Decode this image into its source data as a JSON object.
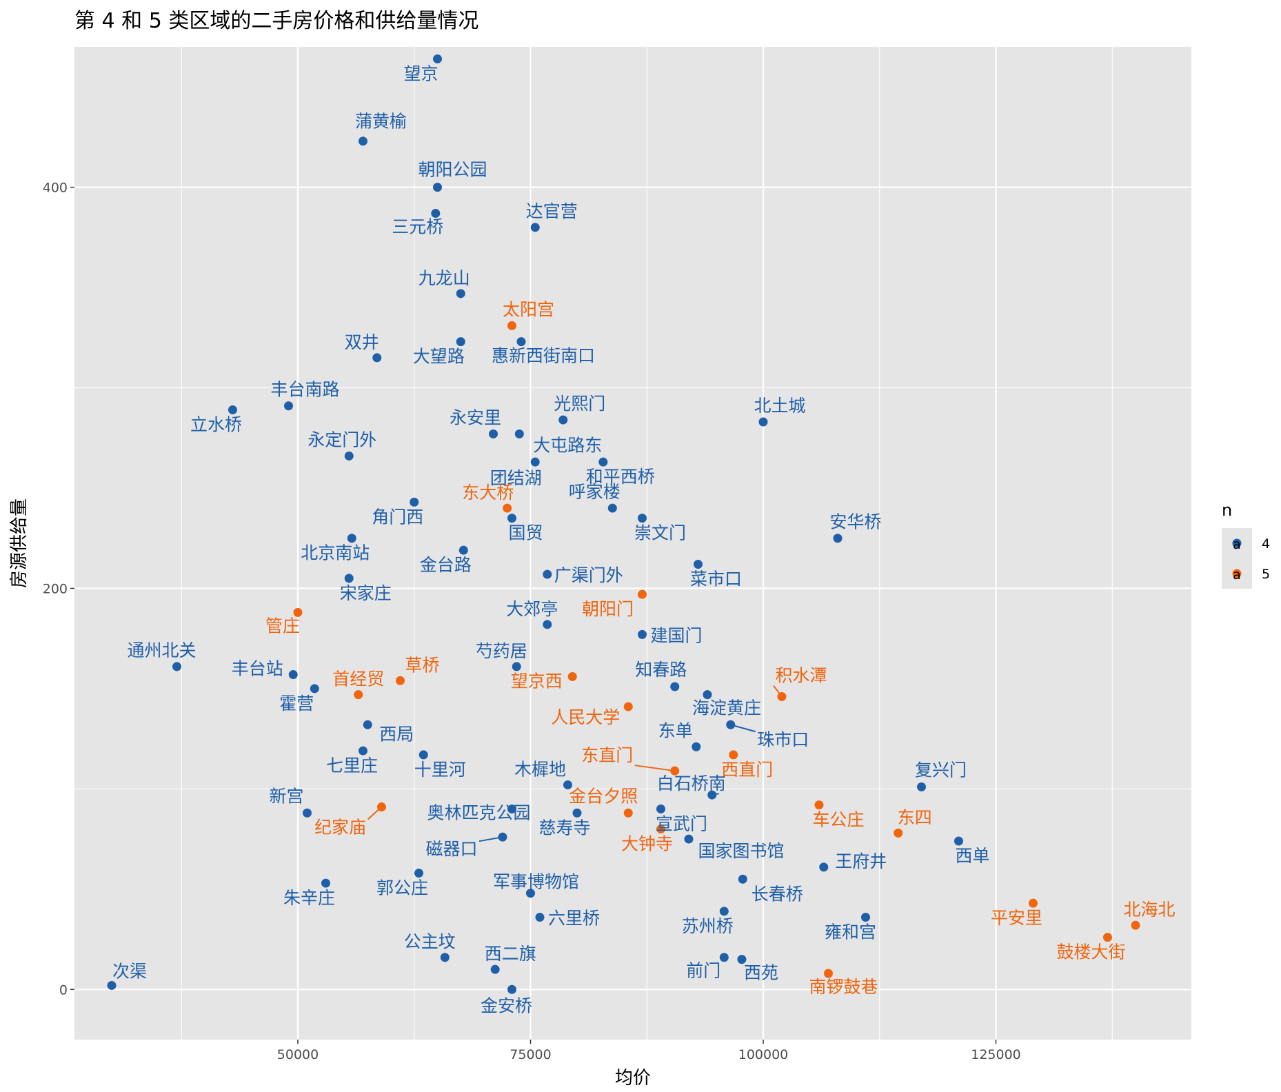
{
  "chart_data": {
    "type": "scatter",
    "title": "第 4 和 5 类区域的二手房价格和供给量情况",
    "xlabel": "均价",
    "ylabel": "房源供给量",
    "xlim": [
      26000,
      146000
    ],
    "ylim": [
      -25,
      470
    ],
    "x_ticks": [
      50000,
      75000,
      100000,
      125000
    ],
    "y_ticks": [
      0,
      200,
      400
    ],
    "grid": true,
    "legend": {
      "title": "n",
      "position": "right",
      "entries": [
        {
          "label": "4",
          "color": "#1f5fa8",
          "glyph": "a"
        },
        {
          "label": "5",
          "color": "#f0650e",
          "glyph": "a"
        }
      ]
    },
    "colors": {
      "4": "#1f5fa8",
      "5": "#f0650e"
    },
    "points": [
      {
        "name": "望京",
        "x": 65000,
        "y": 464,
        "n": "4"
      },
      {
        "name": "蒲黄榆",
        "x": 57000,
        "y": 423,
        "n": "4"
      },
      {
        "name": "朝阳公园",
        "x": 65000,
        "y": 400,
        "n": "4"
      },
      {
        "name": "三元桥",
        "x": 64800,
        "y": 387,
        "n": "4"
      },
      {
        "name": "达官营",
        "x": 75500,
        "y": 380,
        "n": "4"
      },
      {
        "name": "九龙山",
        "x": 67500,
        "y": 347,
        "n": "4"
      },
      {
        "name": "太阳宫",
        "x": 73000,
        "y": 331,
        "n": "5"
      },
      {
        "name": "双井",
        "x": 58500,
        "y": 315,
        "n": "4"
      },
      {
        "name": "大望路",
        "x": 67500,
        "y": 323,
        "n": "4"
      },
      {
        "name": "惠新西街南口",
        "x": 74000,
        "y": 323,
        "n": "4"
      },
      {
        "name": "丰台南路",
        "x": 49000,
        "y": 291,
        "n": "4"
      },
      {
        "name": "立水桥",
        "x": 43000,
        "y": 289,
        "n": "4"
      },
      {
        "name": "永安里",
        "x": 71000,
        "y": 277,
        "n": "4"
      },
      {
        "name": "光熙门",
        "x": 78500,
        "y": 284,
        "n": "4"
      },
      {
        "name": "北土城",
        "x": 100000,
        "y": 283,
        "n": "4"
      },
      {
        "name": "大屯路东",
        "x": 73800,
        "y": 277,
        "n": "4"
      },
      {
        "name": "永定门外",
        "x": 55500,
        "y": 266,
        "n": "4"
      },
      {
        "name": "团结湖",
        "x": 75500,
        "y": 263,
        "n": "4"
      },
      {
        "name": "和平西桥",
        "x": 82800,
        "y": 263,
        "n": "4"
      },
      {
        "name": "东大桥",
        "x": 72500,
        "y": 240,
        "n": "5"
      },
      {
        "name": "角门西",
        "x": 62500,
        "y": 243,
        "n": "4"
      },
      {
        "name": "呼家楼",
        "x": 83800,
        "y": 240,
        "n": "4"
      },
      {
        "name": "国贸",
        "x": 73000,
        "y": 235,
        "n": "4"
      },
      {
        "name": "崇文门",
        "x": 87000,
        "y": 235,
        "n": "4"
      },
      {
        "name": "安华桥",
        "x": 108000,
        "y": 225,
        "n": "4"
      },
      {
        "name": "北京南站",
        "x": 55800,
        "y": 225,
        "n": "4"
      },
      {
        "name": "金台路",
        "x": 67800,
        "y": 219,
        "n": "4"
      },
      {
        "name": "菜市口",
        "x": 93000,
        "y": 212,
        "n": "4"
      },
      {
        "name": "广渠门外",
        "x": 76800,
        "y": 207,
        "n": "4"
      },
      {
        "name": "宋家庄",
        "x": 55500,
        "y": 205,
        "n": "4"
      },
      {
        "name": "朝阳门",
        "x": 87000,
        "y": 197,
        "n": "5"
      },
      {
        "name": "管庄",
        "x": 50000,
        "y": 188,
        "n": "5"
      },
      {
        "name": "大郊亭",
        "x": 76800,
        "y": 182,
        "n": "4"
      },
      {
        "name": "建国门",
        "x": 87000,
        "y": 177,
        "n": "4"
      },
      {
        "name": "通州北关",
        "x": 37000,
        "y": 161,
        "n": "4"
      },
      {
        "name": "芍药居",
        "x": 73500,
        "y": 161,
        "n": "4"
      },
      {
        "name": "丰台站",
        "x": 49500,
        "y": 157,
        "n": "4"
      },
      {
        "name": "草桥",
        "x": 61000,
        "y": 154,
        "n": "5"
      },
      {
        "name": "望京西",
        "x": 79500,
        "y": 156,
        "n": "5"
      },
      {
        "name": "首经贸",
        "x": 56500,
        "y": 147,
        "n": "5"
      },
      {
        "name": "霍营",
        "x": 51800,
        "y": 150,
        "n": "4"
      },
      {
        "name": "知春路",
        "x": 90500,
        "y": 151,
        "n": "4"
      },
      {
        "name": "积水潭",
        "x": 102000,
        "y": 146,
        "n": "5"
      },
      {
        "name": "海淀黄庄",
        "x": 94000,
        "y": 147,
        "n": "4"
      },
      {
        "name": "人民大学",
        "x": 85500,
        "y": 141,
        "n": "5"
      },
      {
        "name": "西局",
        "x": 57500,
        "y": 132,
        "n": "4"
      },
      {
        "name": "珠市口",
        "x": 96500,
        "y": 132,
        "n": "4"
      },
      {
        "name": "东单",
        "x": 92800,
        "y": 121,
        "n": "4"
      },
      {
        "name": "七里庄",
        "x": 57000,
        "y": 119,
        "n": "4"
      },
      {
        "name": "十里河",
        "x": 63500,
        "y": 117,
        "n": "4"
      },
      {
        "name": "西直门",
        "x": 96800,
        "y": 117,
        "n": "5"
      },
      {
        "name": "东直门",
        "x": 90500,
        "y": 109,
        "n": "5"
      },
      {
        "name": "木樨地",
        "x": 79000,
        "y": 102,
        "n": "4"
      },
      {
        "name": "复兴门",
        "x": 117000,
        "y": 101,
        "n": "4"
      },
      {
        "name": "白石桥南",
        "x": 94500,
        "y": 97,
        "n": "4"
      },
      {
        "name": "新宫",
        "x": 51000,
        "y": 88,
        "n": "4"
      },
      {
        "name": "纪家庙",
        "x": 59000,
        "y": 91,
        "n": "5"
      },
      {
        "name": "奥林匹克公园",
        "x": 73000,
        "y": 90,
        "n": "4"
      },
      {
        "name": "金台夕照",
        "x": 85500,
        "y": 88,
        "n": "5"
      },
      {
        "name": "宣武门",
        "x": 89000,
        "y": 90,
        "n": "4"
      },
      {
        "name": "车公庄",
        "x": 106000,
        "y": 92,
        "n": "5"
      },
      {
        "name": "慈寿寺",
        "x": 80000,
        "y": 88,
        "n": "4"
      },
      {
        "name": "东四",
        "x": 114500,
        "y": 78,
        "n": "5"
      },
      {
        "name": "磁器口",
        "x": 72000,
        "y": 76,
        "n": "4"
      },
      {
        "name": "大钟寺",
        "x": 89000,
        "y": 80,
        "n": "5"
      },
      {
        "name": "国家图书馆",
        "x": 92000,
        "y": 75,
        "n": "4"
      },
      {
        "name": "西单",
        "x": 121000,
        "y": 74,
        "n": "4"
      },
      {
        "name": "王府井",
        "x": 106500,
        "y": 61,
        "n": "4"
      },
      {
        "name": "郭公庄",
        "x": 63000,
        "y": 58,
        "n": "4"
      },
      {
        "name": "朱辛庄",
        "x": 53000,
        "y": 53,
        "n": "4"
      },
      {
        "name": "长春桥",
        "x": 97800,
        "y": 55,
        "n": "4"
      },
      {
        "name": "军事博物馆",
        "x": 75000,
        "y": 48,
        "n": "4"
      },
      {
        "name": "平安里",
        "x": 129000,
        "y": 43,
        "n": "5"
      },
      {
        "name": "苏州桥",
        "x": 95800,
        "y": 39,
        "n": "4"
      },
      {
        "name": "六里桥",
        "x": 76000,
        "y": 36,
        "n": "4"
      },
      {
        "name": "北海北",
        "x": 140000,
        "y": 32,
        "n": "5"
      },
      {
        "name": "雍和宫",
        "x": 111000,
        "y": 36,
        "n": "4"
      },
      {
        "name": "鼓楼大街",
        "x": 137000,
        "y": 26,
        "n": "5"
      },
      {
        "name": "公主坟",
        "x": 65800,
        "y": 16,
        "n": "4"
      },
      {
        "name": "前门",
        "x": 95800,
        "y": 16,
        "n": "4"
      },
      {
        "name": "西苑",
        "x": 97700,
        "y": 15,
        "n": "4"
      },
      {
        "name": "西二旗",
        "x": 71200,
        "y": 10,
        "n": "4"
      },
      {
        "name": "南锣鼓巷",
        "x": 107000,
        "y": 8,
        "n": "5"
      },
      {
        "name": "次渠",
        "x": 30000,
        "y": 2,
        "n": "4"
      },
      {
        "name": "金安桥",
        "x": 73000,
        "y": 0,
        "n": "4"
      }
    ]
  }
}
